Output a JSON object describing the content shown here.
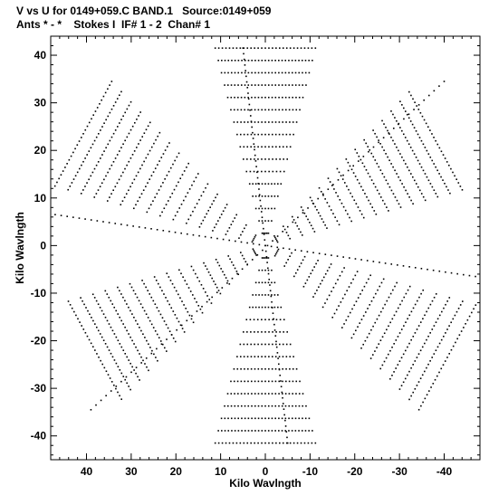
{
  "header": {
    "line1": "V vs U for 0149+059.C BAND.1   Source:0149+059",
    "line2": "Ants * - *    Stokes I  IF# 1 - 2  Chan# 1"
  },
  "chart_data": {
    "type": "scatter",
    "title": "V vs U for 0149+059.C BAND.1   Source:0149+059",
    "subtitle": "Ants * - *    Stokes I  IF# 1 - 2  Chan# 1",
    "xlabel": "Kilo Wavlngth",
    "ylabel": "Kilo Wavlngth",
    "xlim": [
      48,
      -48
    ],
    "ylim": [
      -45,
      44
    ],
    "x_reversed": true,
    "x_ticks": [
      40,
      30,
      20,
      10,
      0,
      -10,
      -20,
      -30,
      -40
    ],
    "x_tick_labels": [
      "40",
      "30",
      "20",
      "10",
      "0",
      "-10",
      "-20",
      "-30",
      "-40"
    ],
    "y_ticks": [
      40,
      30,
      20,
      10,
      0,
      -10,
      -20,
      -30,
      -40
    ],
    "y_tick_labels": [
      "40",
      "30",
      "20",
      "10",
      "0",
      "-10",
      "-20",
      "-30",
      "-40"
    ],
    "grid": false,
    "marker_color": "#000000",
    "uv_arms": [
      {
        "angle_deg": 90,
        "radius": 41.5
      },
      {
        "angle_deg": 150,
        "radius": 44
      },
      {
        "angle_deg": 210,
        "radius": 47
      },
      {
        "angle_deg": 270,
        "radius": 41.5
      },
      {
        "angle_deg": 330,
        "radius": 44
      },
      {
        "angle_deg": 30,
        "radius": 47
      }
    ],
    "long_arms": [
      {
        "start": [
          -40,
          34.5
        ],
        "end": [
          39,
          -34.5
        ]
      },
      {
        "start": [
          5,
          41.5
        ],
        "end": [
          -5,
          -41.5
        ]
      },
      {
        "start": [
          47,
          6.5
        ],
        "end": [
          -47,
          -6.5
        ]
      }
    ]
  }
}
